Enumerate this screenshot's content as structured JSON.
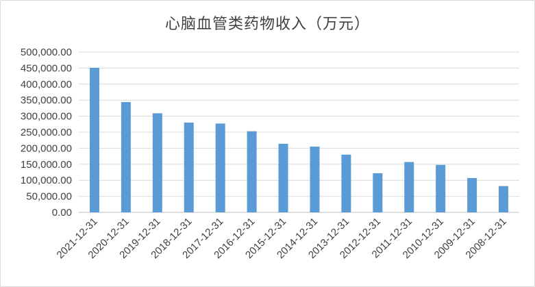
{
  "chart_data": {
    "type": "bar",
    "title": "心脑血管类药物收入（万元）",
    "xlabel": "",
    "ylabel": "",
    "categories": [
      "2021-12-31",
      "2020-12-31",
      "2019-12-31",
      "2018-12-31",
      "2017-12-31",
      "2016-12-31",
      "2015-12-31",
      "2014-12-31",
      "2013-12-31",
      "2012-12-31",
      "2011-12-31",
      "2010-12-31",
      "2009-12-31",
      "2008-12-31"
    ],
    "values": [
      451000,
      344000,
      309000,
      280000,
      277000,
      253000,
      214000,
      205000,
      180000,
      122000,
      157000,
      148000,
      107000,
      82000
    ],
    "ylim": [
      0,
      500000
    ],
    "yticks": [
      "0.00",
      "50,000.00",
      "100,000.00",
      "150,000.00",
      "200,000.00",
      "250,000.00",
      "300,000.00",
      "350,000.00",
      "400,000.00",
      "450,000.00",
      "500,000.00"
    ],
    "grid": true,
    "legend": "none",
    "bar_color": "#5b9bd5"
  }
}
